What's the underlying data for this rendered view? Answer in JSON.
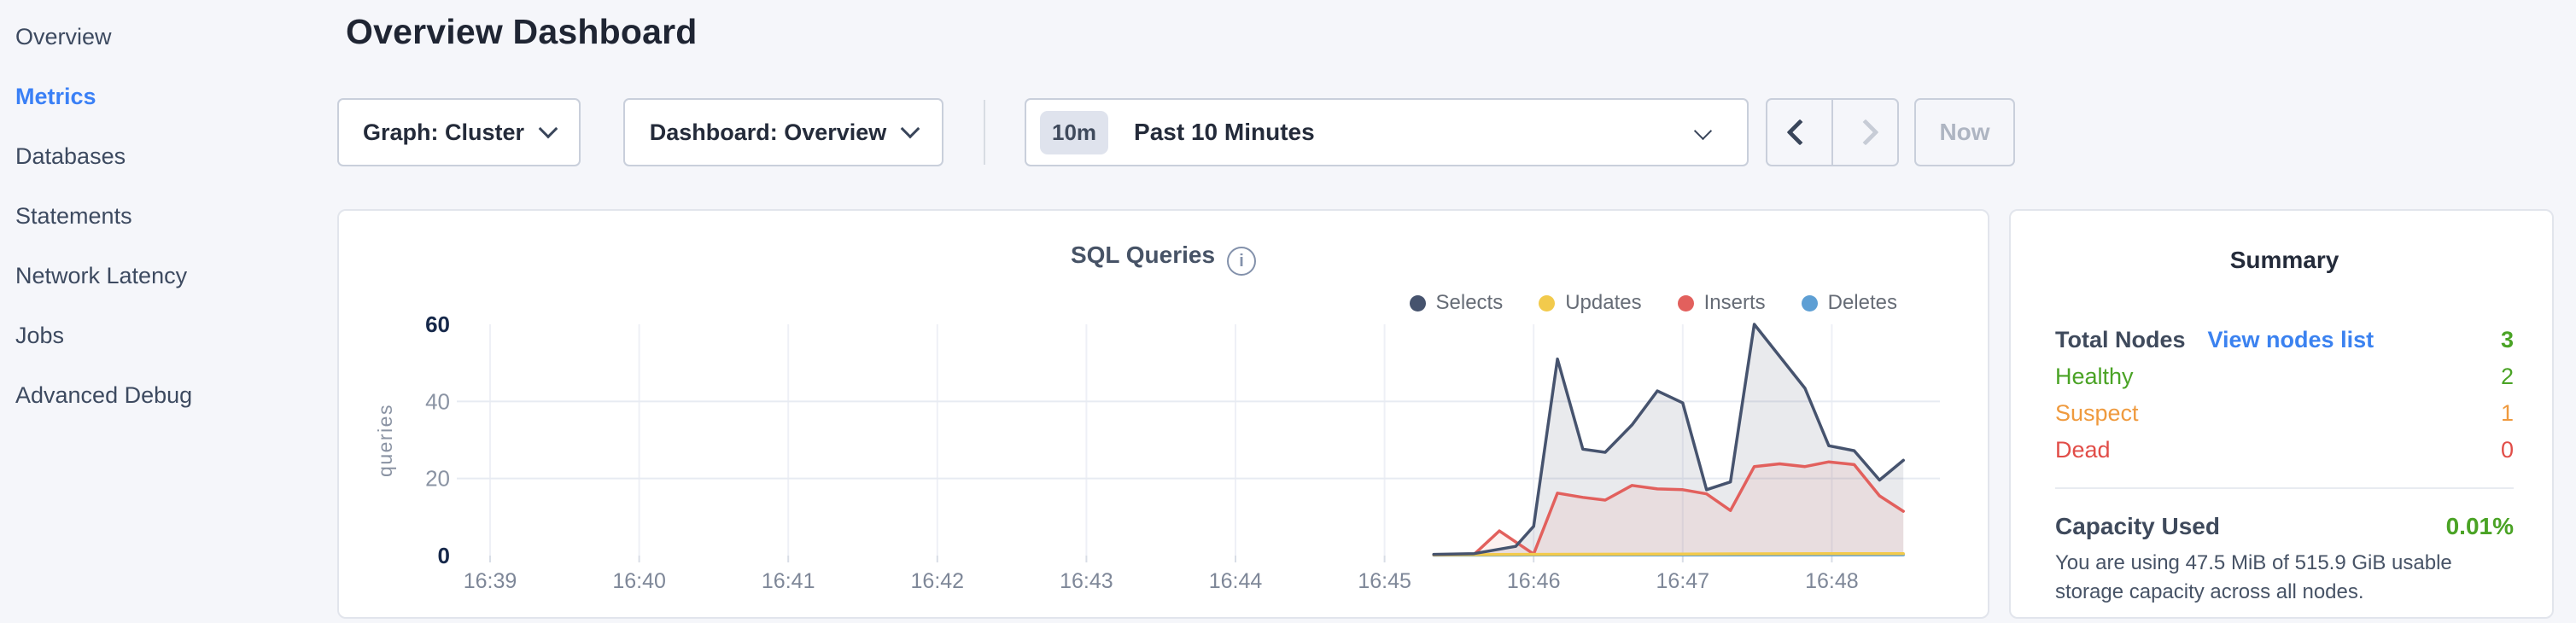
{
  "header": {
    "page_title": "Overview Dashboard"
  },
  "sidebar": {
    "items": [
      {
        "label": "Overview",
        "active": false
      },
      {
        "label": "Metrics",
        "active": true
      },
      {
        "label": "Databases",
        "active": false
      },
      {
        "label": "Statements",
        "active": false
      },
      {
        "label": "Network Latency",
        "active": false
      },
      {
        "label": "Jobs",
        "active": false
      },
      {
        "label": "Advanced Debug",
        "active": false
      }
    ]
  },
  "toolbar": {
    "graph_label": "Graph: Cluster",
    "dashboard_label": "Dashboard: Overview",
    "time_badge": "10m",
    "time_value": "Past 10 Minutes",
    "now_label": "Now"
  },
  "icons": {
    "info": "i"
  },
  "chart_data": {
    "type": "area",
    "title": "SQL Queries",
    "ylabel": "queries",
    "ylim": [
      0,
      60
    ],
    "y_ticks": [
      0,
      20,
      40,
      60
    ],
    "y_tick_bold": [
      0,
      60
    ],
    "x_ticks": [
      "16:39",
      "16:40",
      "16:41",
      "16:42",
      "16:43",
      "16:44",
      "16:45",
      "16:46",
      "16:47",
      "16:48"
    ],
    "x_unit": "minutes after 16:39",
    "grid": true,
    "legend_position": "top-right",
    "colors": {
      "grid_vertical": "#eef0f6",
      "grid_horizontal": "#e7ebf2",
      "tick": "#d8dde6",
      "axis_text": "#7e8798",
      "axis_text_bold": "#16284a",
      "axis_text_muted": "#8a93a3"
    },
    "series": [
      {
        "name": "Selects",
        "color": "#46536e",
        "fill_opacity": 0.12,
        "points": [
          [
            6.33,
            0.3
          ],
          [
            6.6,
            0.5
          ],
          [
            6.88,
            2.4
          ],
          [
            7.0,
            7.6
          ],
          [
            7.16,
            51
          ],
          [
            7.33,
            27.6
          ],
          [
            7.48,
            26.8
          ],
          [
            7.66,
            33.9
          ],
          [
            7.83,
            42.7
          ],
          [
            8.0,
            39.6
          ],
          [
            8.16,
            17.1
          ],
          [
            8.32,
            19.1
          ],
          [
            8.48,
            60
          ],
          [
            8.82,
            43.4
          ],
          [
            8.98,
            28.5
          ],
          [
            9.15,
            27.2
          ],
          [
            9.32,
            19.6
          ],
          [
            9.48,
            24.7
          ]
        ]
      },
      {
        "name": "Updates",
        "color": "#f2ca4c",
        "fill_opacity": 0,
        "points": [
          [
            6.33,
            0.2
          ],
          [
            7.0,
            0.3
          ],
          [
            8.0,
            0.4
          ],
          [
            9.0,
            0.5
          ],
          [
            9.48,
            0.5
          ]
        ]
      },
      {
        "name": "Inserts",
        "color": "#e2605d",
        "fill_opacity": 0.09,
        "points": [
          [
            6.33,
            0.2
          ],
          [
            6.6,
            0.3
          ],
          [
            6.77,
            6.4
          ],
          [
            7.0,
            0.4
          ],
          [
            7.16,
            16.2
          ],
          [
            7.33,
            15.1
          ],
          [
            7.48,
            14.4
          ],
          [
            7.66,
            18.2
          ],
          [
            7.83,
            17.3
          ],
          [
            8.0,
            17.1
          ],
          [
            8.16,
            16.0
          ],
          [
            8.32,
            11.7
          ],
          [
            8.48,
            23.1
          ],
          [
            8.65,
            23.8
          ],
          [
            8.82,
            23.1
          ],
          [
            8.98,
            24.3
          ],
          [
            9.15,
            23.6
          ],
          [
            9.32,
            15.5
          ],
          [
            9.48,
            11.5
          ]
        ]
      },
      {
        "name": "Deletes",
        "color": "#5e9fd4",
        "fill_opacity": 0,
        "points": [
          [
            6.33,
            0.1
          ],
          [
            7.0,
            0.15
          ],
          [
            8.0,
            0.15
          ],
          [
            9.0,
            0.2
          ],
          [
            9.48,
            0.2
          ]
        ]
      }
    ]
  },
  "summary": {
    "title": "Summary",
    "rows": [
      {
        "label": "Total Nodes",
        "link": "View nodes list",
        "value": "3",
        "label_color": "#3f4a5c",
        "value_color": "#4aa325",
        "bold": true
      },
      {
        "label": "Healthy",
        "value": "2",
        "label_color": "#4aa325",
        "value_color": "#4aa325",
        "bold": false
      },
      {
        "label": "Suspect",
        "value": "1",
        "label_color": "#ef9a3e",
        "value_color": "#ef9a3e",
        "bold": false
      },
      {
        "label": "Dead",
        "value": "0",
        "label_color": "#e14d48",
        "value_color": "#e14d48",
        "bold": false
      }
    ],
    "capacity": {
      "label": "Capacity Used",
      "value": "0.01%",
      "value_color": "#4aa325"
    },
    "capacity_note": "You are using 47.5 MiB of 515.9 GiB usable storage capacity across all nodes."
  }
}
